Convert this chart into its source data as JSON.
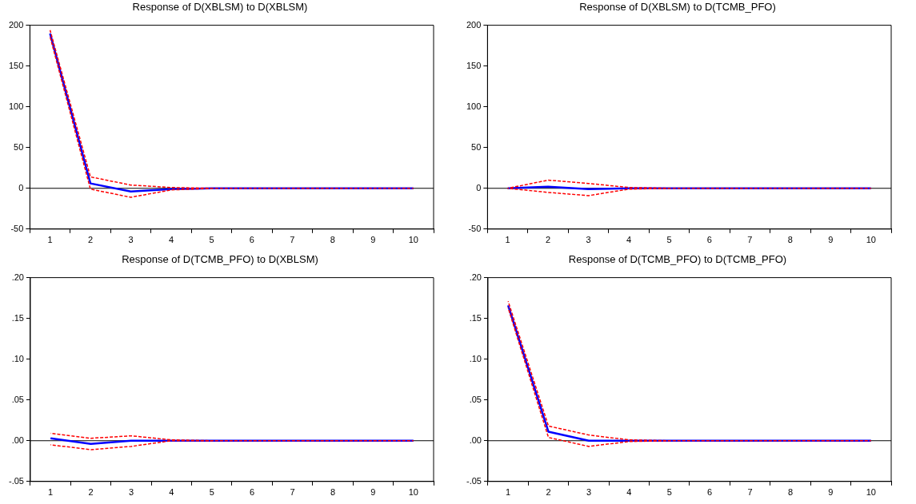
{
  "chart_data": [
    {
      "type": "line",
      "title": "Response of D(XBLSM) to D(XBLSM)",
      "categories": [
        "1",
        "2",
        "3",
        "4",
        "5",
        "6",
        "7",
        "8",
        "9",
        "10"
      ],
      "marker": "none",
      "ylim": [
        -50,
        200
      ],
      "yticks": [
        -50,
        0,
        50,
        100,
        150,
        200
      ],
      "ref_lines": [
        {
          "axis": "y",
          "value": 0,
          "color": "#000000"
        }
      ],
      "series": [
        {
          "color": "#0000ff",
          "line_style": "solid",
          "values": [
            190,
            6,
            -4,
            -1,
            0,
            0,
            0,
            0,
            0,
            0
          ]
        },
        {
          "color": "#ff0000",
          "line_style": "dashed",
          "values": [
            194,
            14,
            4,
            1,
            0,
            0,
            0,
            0,
            0,
            0
          ]
        },
        {
          "color": "#ff0000",
          "line_style": "dashed",
          "values": [
            186,
            -1,
            -11,
            -2,
            0,
            null,
            null,
            null,
            null,
            null
          ]
        }
      ]
    },
    {
      "type": "line",
      "title": "Response of D(XBLSM) to D(TCMB_PFO)",
      "categories": [
        "1",
        "2",
        "3",
        "4",
        "5",
        "6",
        "7",
        "8",
        "9",
        "10"
      ],
      "marker": "none",
      "ylim": [
        -50,
        200
      ],
      "yticks": [
        -50,
        0,
        50,
        100,
        150,
        200
      ],
      "ref_lines": [
        {
          "axis": "y",
          "value": 0,
          "color": "#000000"
        }
      ],
      "series": [
        {
          "color": "#0000ff",
          "line_style": "solid",
          "values": [
            0,
            2,
            -1,
            0,
            0,
            0,
            0,
            0,
            0,
            0
          ]
        },
        {
          "color": "#ff0000",
          "line_style": "dashed",
          "values": [
            0,
            10,
            6,
            1,
            0,
            0,
            0,
            0,
            0,
            0
          ]
        },
        {
          "color": "#ff0000",
          "line_style": "dashed",
          "values": [
            0,
            -5,
            -9,
            -1,
            0,
            null,
            null,
            null,
            null,
            null
          ]
        }
      ]
    },
    {
      "type": "line",
      "title": "Response of D(TCMB_PFO) to D(XBLSM)",
      "categories": [
        "1",
        "2",
        "3",
        "4",
        "5",
        "6",
        "7",
        "8",
        "9",
        "10"
      ],
      "marker": "none",
      "ylim": [
        -0.05,
        0.2
      ],
      "yticks": [
        {
          "value": -0.05,
          "label": "-.05"
        },
        {
          "value": 0,
          "label": ".00"
        },
        {
          "value": 0.05,
          "label": ".05"
        },
        {
          "value": 0.1,
          "label": ".10"
        },
        {
          "value": 0.15,
          "label": ".15"
        },
        {
          "value": 0.2,
          "label": ".20"
        }
      ],
      "ref_lines": [
        {
          "axis": "y",
          "value": 0,
          "color": "#000000"
        }
      ],
      "series": [
        {
          "color": "#0000ff",
          "line_style": "solid",
          "values": [
            0.003,
            -0.004,
            0,
            0,
            0,
            0,
            0,
            0,
            0,
            0
          ]
        },
        {
          "color": "#ff0000",
          "line_style": "dashed",
          "values": [
            0.009,
            0.003,
            0.006,
            0.001,
            0,
            0,
            0,
            0,
            0,
            0
          ]
        },
        {
          "color": "#ff0000",
          "line_style": "dashed",
          "values": [
            -0.005,
            -0.011,
            -0.007,
            0,
            0,
            null,
            null,
            null,
            null,
            null
          ]
        }
      ]
    },
    {
      "type": "line",
      "title": "Response of D(TCMB_PFO) to D(TCMB_PFO)",
      "categories": [
        "1",
        "2",
        "3",
        "4",
        "5",
        "6",
        "7",
        "8",
        "9",
        "10"
      ],
      "marker": "none",
      "ylim": [
        -0.05,
        0.2
      ],
      "yticks": [
        {
          "value": -0.05,
          "label": "-.05"
        },
        {
          "value": 0,
          "label": ".00"
        },
        {
          "value": 0.05,
          "label": ".05"
        },
        {
          "value": 0.1,
          "label": ".10"
        },
        {
          "value": 0.15,
          "label": ".15"
        },
        {
          "value": 0.2,
          "label": ".20"
        }
      ],
      "ref_lines": [
        {
          "axis": "y",
          "value": 0,
          "color": "#000000"
        }
      ],
      "series": [
        {
          "color": "#0000ff",
          "line_style": "solid",
          "values": [
            0.166,
            0.011,
            0,
            0,
            0,
            0,
            0,
            0,
            0,
            0
          ]
        },
        {
          "color": "#ff0000",
          "line_style": "dashed",
          "values": [
            0.171,
            0.018,
            0.007,
            0.001,
            0,
            0,
            0,
            0,
            0,
            0
          ]
        },
        {
          "color": "#ff0000",
          "line_style": "dashed",
          "values": [
            0.163,
            0.004,
            -0.007,
            -0.001,
            0,
            null,
            null,
            null,
            null,
            null
          ]
        }
      ]
    }
  ]
}
